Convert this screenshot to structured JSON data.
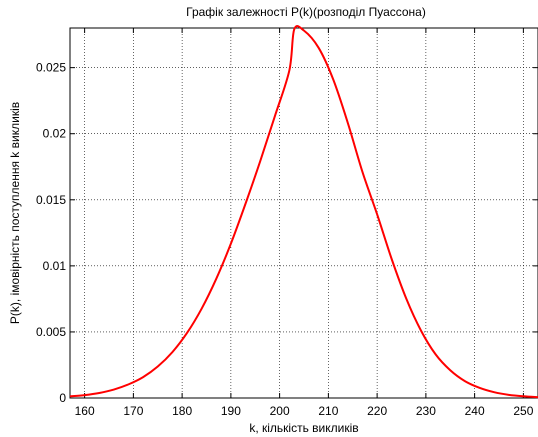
{
  "chart_data": {
    "type": "line",
    "title": "Графік залежності P(k)(розподіл Пуассона)",
    "xlabel": "k, кількість викликів",
    "ylabel": "P(k), імовірність поступлення k викликів",
    "xlim": [
      157,
      253
    ],
    "ylim": [
      0,
      0.028
    ],
    "xticks": [
      160,
      170,
      180,
      190,
      200,
      210,
      220,
      230,
      240,
      250
    ],
    "xtick_labels": [
      "160",
      "170",
      "180",
      "190",
      "200",
      "210",
      "220",
      "230",
      "240",
      "250"
    ],
    "yticks": [
      0,
      0.005,
      0.01,
      0.015,
      0.02,
      0.025
    ],
    "ytick_labels": [
      "0",
      "0.005",
      "0.01",
      "0.015",
      "0.02",
      "0.025"
    ],
    "grid": true,
    "series": [
      {
        "color": "#ff0000",
        "x": [
          157,
          160,
          163,
          166,
          169,
          172,
          175,
          178,
          181,
          184,
          187,
          190,
          193,
          196,
          199,
          202,
          203,
          205,
          208,
          211,
          214,
          217,
          220,
          223,
          226,
          229,
          232,
          235,
          238,
          241,
          244,
          247,
          250,
          253
        ],
        "y": [
          0.00012,
          0.00022,
          0.00038,
          0.00064,
          0.00103,
          0.00158,
          0.00238,
          0.00347,
          0.00492,
          0.00676,
          0.00902,
          0.01168,
          0.0147,
          0.0179,
          0.0213,
          0.0248,
          0.0279,
          0.0278,
          0.0265,
          0.0241,
          0.0208,
          0.0171,
          0.0139,
          0.0105,
          0.0075,
          0.0051,
          0.0033,
          0.0021,
          0.00128,
          0.00077,
          0.00044,
          0.00024,
          0.00013,
          6e-05
        ]
      }
    ]
  }
}
